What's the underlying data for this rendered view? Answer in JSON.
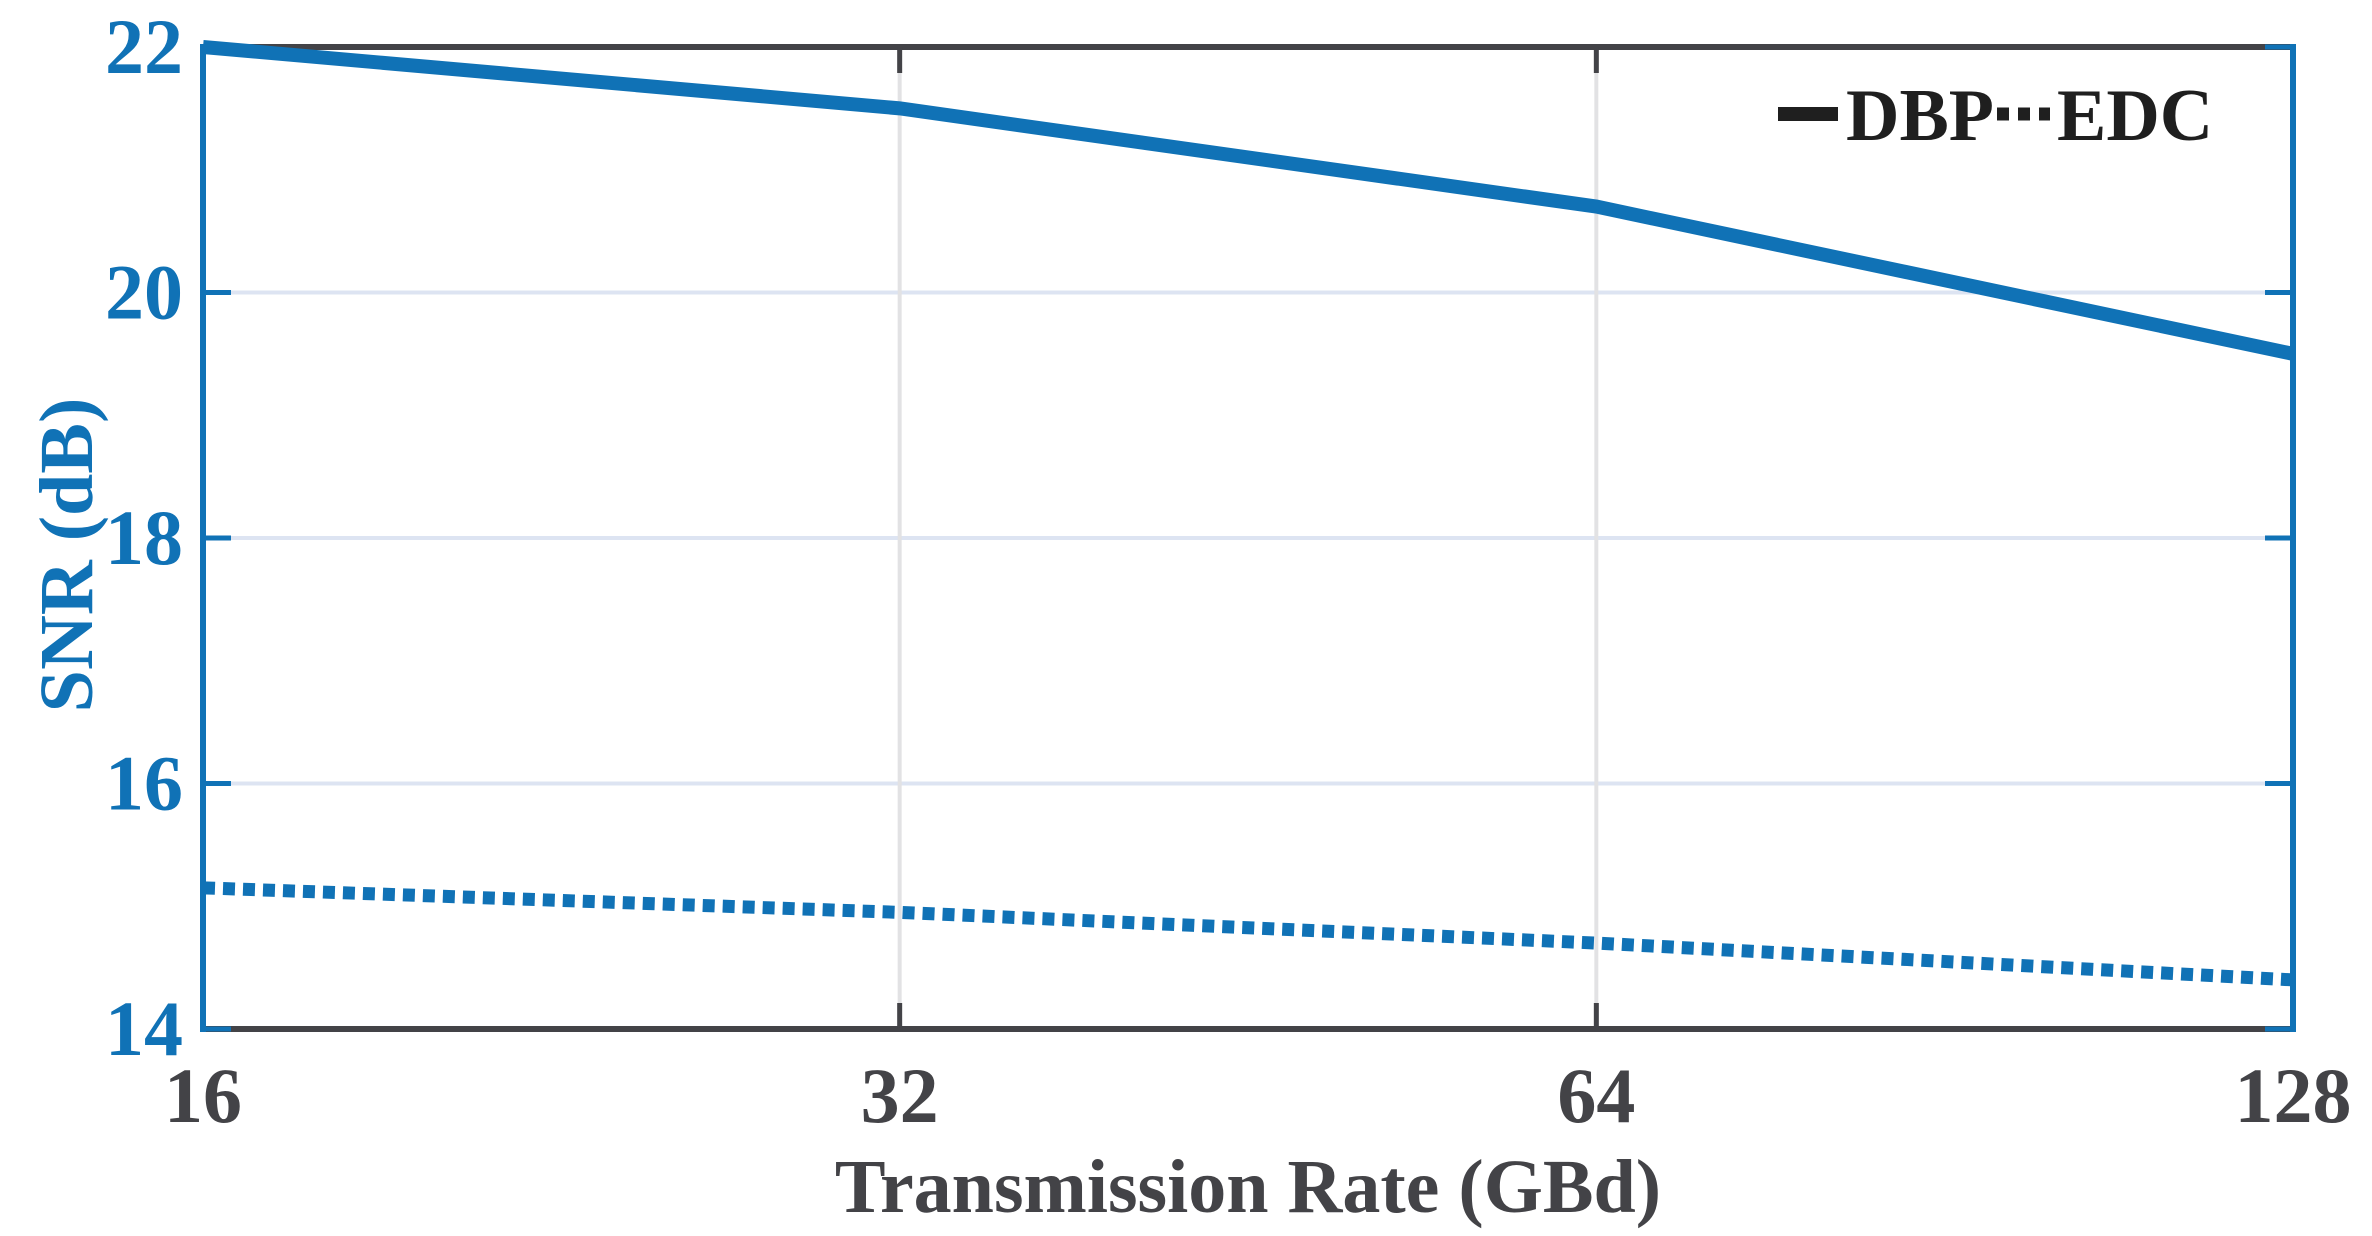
{
  "figure": {
    "background": "#ffffff",
    "accent_blue": "#1072B6",
    "axis_dark": "#434347",
    "grid_h_color": "#dde4f2",
    "grid_v_color": "#e2e2e4",
    "legend_color": "#1f1f1f"
  },
  "chart_data": {
    "type": "line",
    "x": [
      16,
      32,
      64,
      128
    ],
    "xscale": "log2",
    "series": [
      {
        "name": "DBP",
        "style": "solid",
        "color": "#1072B6",
        "values": [
          22.0,
          21.5,
          20.7,
          19.5
        ]
      },
      {
        "name": "EDC",
        "style": "dotted",
        "color": "#1072B6",
        "values": [
          15.15,
          14.95,
          14.7,
          14.4
        ]
      }
    ],
    "title": "",
    "xlabel": "Transmission Rate (GBd)",
    "ylabel": "SNR (dB)",
    "xlim": [
      16,
      128
    ],
    "ylim": [
      14,
      22
    ],
    "xticks": [
      16,
      32,
      64,
      128
    ],
    "yticks": [
      14,
      16,
      18,
      20,
      22
    ],
    "grid": true,
    "legend_position": "top-right-inside"
  }
}
